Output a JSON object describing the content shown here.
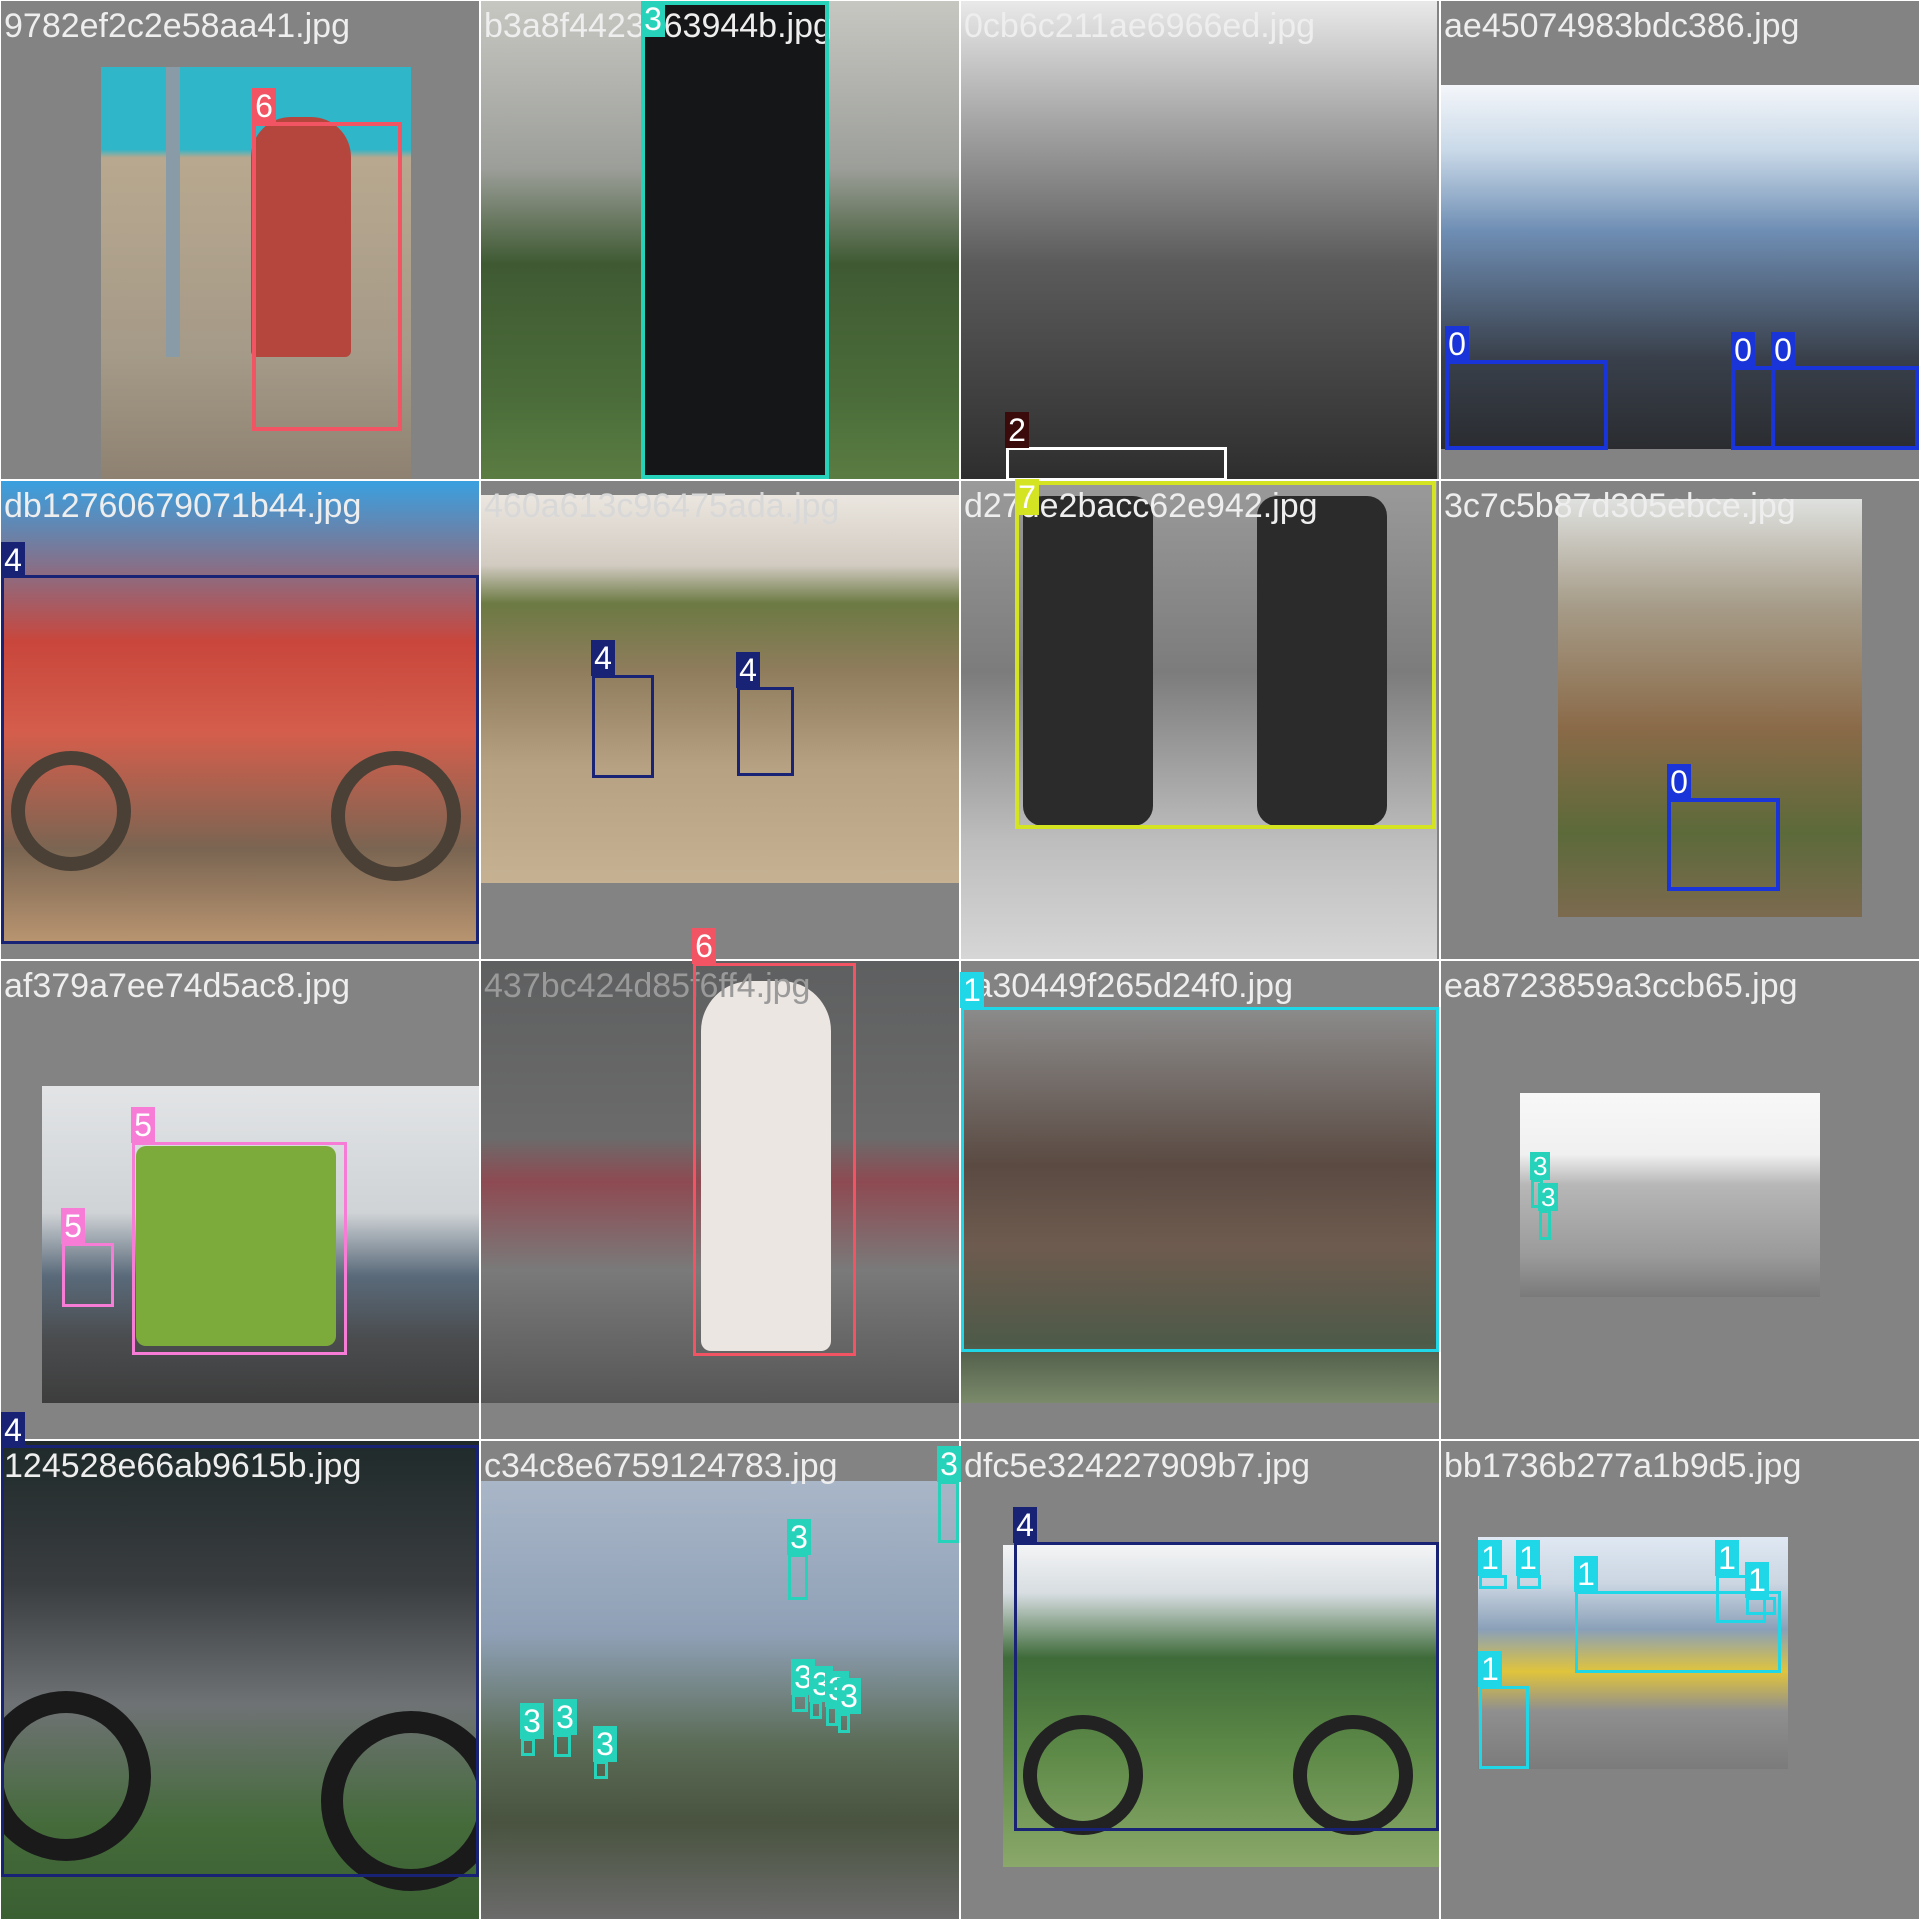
{
  "tiles": [
    {
      "filename": "9782ef2c2e58aa41.jpg",
      "boxes": [
        {
          "label": "6",
          "color": "#f25464"
        }
      ]
    },
    {
      "filename": "b3a8f4423763944b.jpg",
      "boxes": [
        {
          "label": "3",
          "color": "#26d2b9"
        }
      ]
    },
    {
      "filename": "0cb6c211ae6966ed.jpg",
      "boxes": [
        {
          "label": "2",
          "color": "#ffffff",
          "tag_color": "#3b0a0a"
        }
      ]
    },
    {
      "filename": "ae45074983bdc386.jpg",
      "boxes": [
        {
          "label": "0",
          "color": "#1934d9"
        },
        {
          "label": "0",
          "color": "#1934d9"
        },
        {
          "label": "0",
          "color": "#1934d9"
        }
      ]
    },
    {
      "filename": "db12760679071b44.jpg",
      "boxes": [
        {
          "label": "4",
          "color": "#192375"
        }
      ]
    },
    {
      "filename": "460a613c96475ada.jpg",
      "boxes": [
        {
          "label": "4",
          "color": "#192375"
        },
        {
          "label": "4",
          "color": "#192375"
        }
      ]
    },
    {
      "filename": "d27de2bacc62e942.jpg",
      "boxes": [
        {
          "label": "7",
          "color": "#d4e422"
        }
      ]
    },
    {
      "filename": "3c7c5b87d305ebce.jpg",
      "boxes": [
        {
          "label": "0",
          "color": "#1934d9"
        }
      ]
    },
    {
      "filename": "af379a7ee74d5ac8.jpg",
      "boxes": [
        {
          "label": "5",
          "color": "#f67cd6"
        },
        {
          "label": "5",
          "color": "#f67cd6"
        }
      ]
    },
    {
      "filename": "437bc424d85f6ff4.jpg",
      "boxes": [
        {
          "label": "6",
          "color": "#f25464"
        }
      ]
    },
    {
      "filename": "fa30449f265d24f0.jpg",
      "boxes": [
        {
          "label": "1",
          "color": "#1fd7e6"
        }
      ]
    },
    {
      "filename": "ea8723859a3ccb65.jpg",
      "boxes": [
        {
          "label": "3",
          "color": "#26d2b9"
        },
        {
          "label": "3",
          "color": "#26d2b9"
        }
      ]
    },
    {
      "filename": "124528e66ab9615b.jpg",
      "boxes": [
        {
          "label": "4",
          "color": "#192375"
        }
      ]
    },
    {
      "filename": "c34c8e6759124783.jpg",
      "boxes": [
        {
          "label": "3",
          "color": "#26d2b9"
        },
        {
          "label": "3",
          "color": "#26d2b9"
        },
        {
          "label": "3",
          "color": "#26d2b9"
        },
        {
          "label": "3",
          "color": "#26d2b9"
        },
        {
          "label": "3",
          "color": "#26d2b9"
        },
        {
          "label": "3",
          "color": "#26d2b9"
        },
        {
          "label": "3",
          "color": "#26d2b9"
        },
        {
          "label": "3",
          "color": "#26d2b9"
        },
        {
          "label": "3",
          "color": "#26d2b9"
        }
      ]
    },
    {
      "filename": "dfc5e324227909b7.jpg",
      "boxes": [
        {
          "label": "4",
          "color": "#192375"
        }
      ]
    },
    {
      "filename": "bb1736b277a1b9d5.jpg",
      "boxes": [
        {
          "label": "1",
          "color": "#1fd7e6"
        },
        {
          "label": "1",
          "color": "#1fd7e6"
        },
        {
          "label": "1",
          "color": "#1fd7e6"
        },
        {
          "label": "1",
          "color": "#1fd7e6"
        },
        {
          "label": "1",
          "color": "#1fd7e6"
        },
        {
          "label": "1",
          "color": "#1fd7e6"
        }
      ]
    }
  ]
}
